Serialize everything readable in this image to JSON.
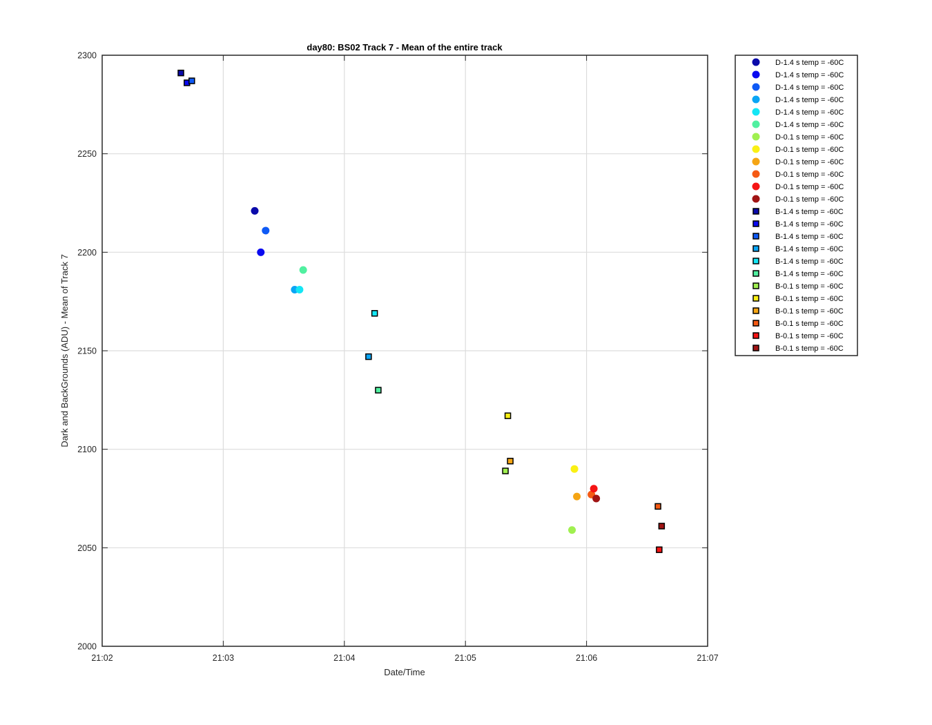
{
  "chart_data": {
    "type": "scatter",
    "title": "day80: BS02  Track 7 - Mean of the entire track",
    "xlabel": "Date/Time",
    "ylabel": "Dark and BackGrounds (ADU) - Mean of Track 7",
    "x_unit": "time (HH:MM)",
    "xlim": [
      "21:02:00",
      "21:07:00"
    ],
    "ylim": [
      2000,
      2300
    ],
    "xticks": [
      "21:02",
      "21:03",
      "21:04",
      "21:05",
      "21:06",
      "21:07"
    ],
    "yticks": [
      2000,
      2050,
      2100,
      2150,
      2200,
      2250,
      2300
    ],
    "grid": true,
    "legend_position": "outside-right",
    "series": [
      {
        "name": "D-1.4 s temp = -60C",
        "marker": "circle",
        "color": "#0A0AAA",
        "points": [
          {
            "x": "21:03:15.6",
            "y": 2221
          }
        ]
      },
      {
        "name": "D-1.4 s temp = -60C",
        "marker": "circle",
        "color": "#0A0AF0",
        "points": [
          {
            "x": "21:03:18.6",
            "y": 2200
          }
        ]
      },
      {
        "name": "D-1.4 s temp = -60C",
        "marker": "circle",
        "color": "#0F5AF5",
        "points": [
          {
            "x": "21:03:21.0",
            "y": 2211
          }
        ]
      },
      {
        "name": "D-1.4 s temp = -60C",
        "marker": "circle",
        "color": "#0AA5F5",
        "points": [
          {
            "x": "21:03:35.4",
            "y": 2181
          }
        ]
      },
      {
        "name": "D-1.4 s temp = -60C",
        "marker": "circle",
        "color": "#14E6F5",
        "points": [
          {
            "x": "21:03:37.8",
            "y": 2181
          }
        ]
      },
      {
        "name": "D-1.4 s temp = -60C",
        "marker": "circle",
        "color": "#50F0A0",
        "points": [
          {
            "x": "21:03:39.6",
            "y": 2191
          }
        ]
      },
      {
        "name": "D-0.1 s temp = -60C",
        "marker": "circle",
        "color": "#A0F050",
        "points": [
          {
            "x": "21:05:52.8",
            "y": 2059
          }
        ]
      },
      {
        "name": "D-0.1 s temp = -60C",
        "marker": "circle",
        "color": "#FAF014",
        "points": [
          {
            "x": "21:05:54.0",
            "y": 2090
          }
        ]
      },
      {
        "name": "D-0.1 s temp = -60C",
        "marker": "circle",
        "color": "#F5A514",
        "points": [
          {
            "x": "21:05:55.2",
            "y": 2076
          }
        ]
      },
      {
        "name": "D-0.1 s temp = -60C",
        "marker": "circle",
        "color": "#F55A14",
        "points": [
          {
            "x": "21:06:02.4",
            "y": 2077
          }
        ]
      },
      {
        "name": "D-0.1 s temp = -60C",
        "marker": "circle",
        "color": "#F51414",
        "points": [
          {
            "x": "21:06:03.6",
            "y": 2080
          }
        ]
      },
      {
        "name": "D-0.1 s temp = -60C",
        "marker": "circle",
        "color": "#A01414",
        "points": [
          {
            "x": "21:06:04.8",
            "y": 2075
          }
        ]
      },
      {
        "name": "B-1.4 s temp = -60C",
        "marker": "square",
        "color": "#0A0AAA",
        "points": [
          {
            "x": "21:02:39.0",
            "y": 2291
          }
        ]
      },
      {
        "name": "B-1.4 s temp = -60C",
        "marker": "square",
        "color": "#0A0AF0",
        "points": [
          {
            "x": "21:02:42.0",
            "y": 2286
          }
        ]
      },
      {
        "name": "B-1.4 s temp = -60C",
        "marker": "square",
        "color": "#0F5AF5",
        "points": [
          {
            "x": "21:02:44.4",
            "y": 2287
          }
        ]
      },
      {
        "name": "B-1.4 s temp = -60C",
        "marker": "square",
        "color": "#0AA5F5",
        "points": [
          {
            "x": "21:04:12.0",
            "y": 2147
          }
        ]
      },
      {
        "name": "B-1.4 s temp = -60C",
        "marker": "square",
        "color": "#14E6F5",
        "points": [
          {
            "x": "21:04:15.0",
            "y": 2169
          }
        ]
      },
      {
        "name": "B-1.4 s temp = -60C",
        "marker": "square",
        "color": "#50F0A0",
        "points": [
          {
            "x": "21:04:16.8",
            "y": 2130
          }
        ]
      },
      {
        "name": "B-0.1 s temp = -60C",
        "marker": "square",
        "color": "#A0F050",
        "points": [
          {
            "x": "21:05:19.8",
            "y": 2089
          }
        ]
      },
      {
        "name": "B-0.1 s temp = -60C",
        "marker": "square",
        "color": "#FAF014",
        "points": [
          {
            "x": "21:05:21.0",
            "y": 2117
          }
        ]
      },
      {
        "name": "B-0.1 s temp = -60C",
        "marker": "square",
        "color": "#F5A514",
        "points": [
          {
            "x": "21:05:22.2",
            "y": 2094
          }
        ]
      },
      {
        "name": "B-0.1 s temp = -60C",
        "marker": "square",
        "color": "#F55A14",
        "points": [
          {
            "x": "21:06:35.4",
            "y": 2071
          }
        ]
      },
      {
        "name": "B-0.1 s temp = -60C",
        "marker": "square",
        "color": "#F51414",
        "points": [
          {
            "x": "21:06:36.0",
            "y": 2049
          }
        ]
      },
      {
        "name": "B-0.1 s temp = -60C",
        "marker": "square",
        "color": "#A01414",
        "points": [
          {
            "x": "21:06:37.2",
            "y": 2061
          }
        ]
      }
    ]
  }
}
